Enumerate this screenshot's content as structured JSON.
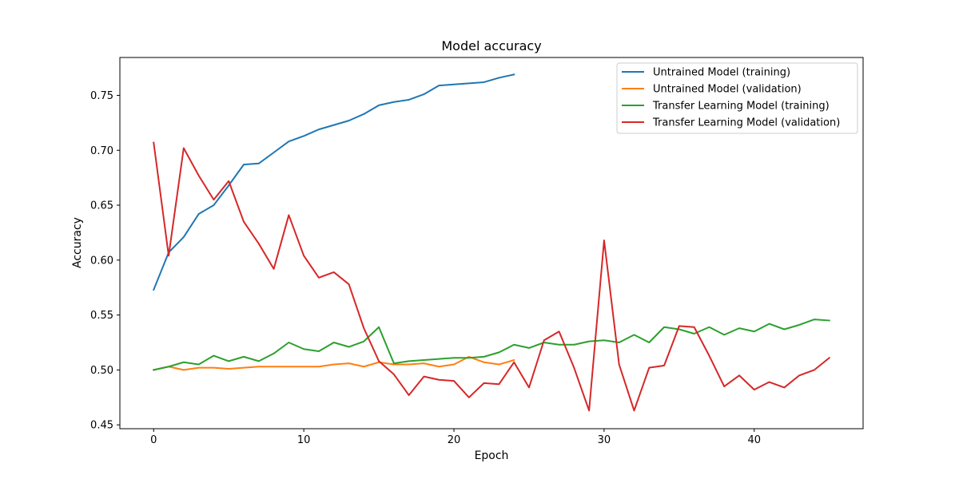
{
  "chart_data": {
    "type": "line",
    "title": "Model accuracy",
    "xlabel": "Epoch",
    "ylabel": "Accuracy",
    "xlim": [
      -2.25,
      47.25
    ],
    "ylim": [
      0.4465,
      0.7845
    ],
    "xticks": [
      0,
      10,
      20,
      30,
      40
    ],
    "xtick_labels": [
      "0",
      "10",
      "20",
      "30",
      "40"
    ],
    "yticks": [
      0.45,
      0.5,
      0.55,
      0.6,
      0.65,
      0.7,
      0.75
    ],
    "ytick_labels": [
      "0.45",
      "0.50",
      "0.55",
      "0.60",
      "0.65",
      "0.70",
      "0.75"
    ],
    "grid": false,
    "legend_position": "upper right",
    "series": [
      {
        "name": "Untrained Model (training)",
        "color": "#1f77b4",
        "x": [
          0,
          1,
          2,
          3,
          4,
          5,
          6,
          7,
          8,
          9,
          10,
          11,
          12,
          13,
          14,
          15,
          16,
          17,
          18,
          19,
          20,
          21,
          22,
          23,
          24
        ],
        "y": [
          0.573,
          0.607,
          0.621,
          0.642,
          0.65,
          0.668,
          0.687,
          0.688,
          0.698,
          0.708,
          0.713,
          0.719,
          0.723,
          0.727,
          0.733,
          0.741,
          0.744,
          0.746,
          0.751,
          0.759,
          0.76,
          0.761,
          0.762,
          0.766,
          0.769
        ]
      },
      {
        "name": "Untrained Model (validation)",
        "color": "#ff7f0e",
        "x": [
          0,
          1,
          2,
          3,
          4,
          5,
          6,
          7,
          8,
          9,
          10,
          11,
          12,
          13,
          14,
          15,
          16,
          17,
          18,
          19,
          20,
          21,
          22,
          23,
          24
        ],
        "y": [
          0.5,
          0.503,
          0.5,
          0.502,
          0.502,
          0.501,
          0.502,
          0.503,
          0.503,
          0.503,
          0.503,
          0.503,
          0.505,
          0.506,
          0.503,
          0.507,
          0.505,
          0.505,
          0.506,
          0.503,
          0.505,
          0.512,
          0.507,
          0.505,
          0.509
        ]
      },
      {
        "name": "Transfer Learning Model (training)",
        "color": "#2ca02c",
        "x": [
          0,
          1,
          2,
          3,
          4,
          5,
          6,
          7,
          8,
          9,
          10,
          11,
          12,
          13,
          14,
          15,
          16,
          17,
          18,
          19,
          20,
          21,
          22,
          23,
          24,
          25,
          26,
          27,
          28,
          29,
          30,
          31,
          32,
          33,
          34,
          35,
          36,
          37,
          38,
          39,
          40,
          41,
          42,
          43,
          44,
          45
        ],
        "y": [
          0.5,
          0.503,
          0.507,
          0.505,
          0.513,
          0.508,
          0.512,
          0.508,
          0.515,
          0.525,
          0.519,
          0.517,
          0.525,
          0.521,
          0.526,
          0.539,
          0.506,
          0.508,
          0.509,
          0.51,
          0.511,
          0.511,
          0.512,
          0.516,
          0.523,
          0.52,
          0.525,
          0.523,
          0.523,
          0.526,
          0.527,
          0.525,
          0.532,
          0.525,
          0.539,
          0.537,
          0.533,
          0.539,
          0.532,
          0.538,
          0.535,
          0.542,
          0.537,
          0.541,
          0.546,
          0.545
        ]
      },
      {
        "name": "Transfer Learning Model (validation)",
        "color": "#d62728",
        "x": [
          0,
          1,
          2,
          3,
          4,
          5,
          6,
          7,
          8,
          9,
          10,
          11,
          12,
          13,
          14,
          15,
          16,
          17,
          18,
          19,
          20,
          21,
          22,
          23,
          24,
          25,
          26,
          27,
          28,
          29,
          30,
          31,
          32,
          33,
          34,
          35,
          36,
          37,
          38,
          39,
          40,
          41,
          42,
          43,
          44,
          45
        ],
        "y": [
          0.707,
          0.604,
          0.702,
          0.677,
          0.655,
          0.672,
          0.635,
          0.615,
          0.592,
          0.641,
          0.604,
          0.584,
          0.589,
          0.578,
          0.538,
          0.508,
          0.496,
          0.477,
          0.494,
          0.491,
          0.49,
          0.475,
          0.488,
          0.487,
          0.507,
          0.484,
          0.527,
          0.535,
          0.502,
          0.463,
          0.618,
          0.505,
          0.463,
          0.502,
          0.504,
          0.54,
          0.539,
          0.513,
          0.485,
          0.495,
          0.482,
          0.489,
          0.484,
          0.495,
          0.5,
          0.511
        ]
      }
    ]
  }
}
